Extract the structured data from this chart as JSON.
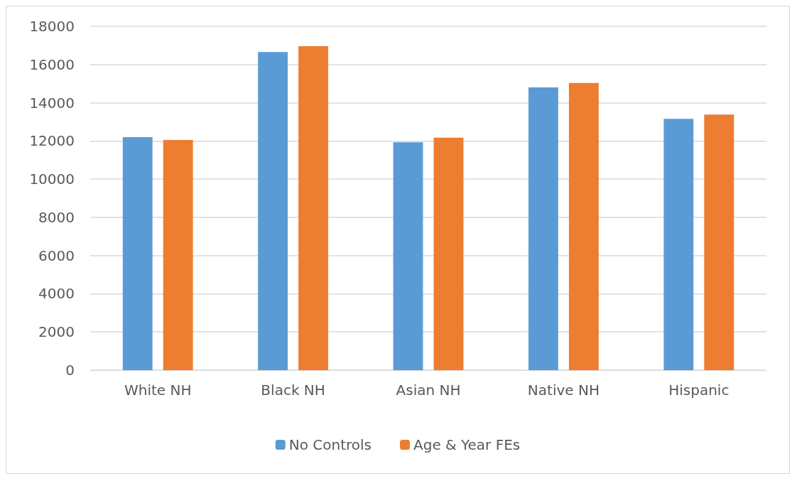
{
  "chart_data": {
    "type": "bar",
    "categories": [
      "White NH",
      "Black NH",
      "Asian NH",
      "Native NH",
      "Hispanic"
    ],
    "series": [
      {
        "name": "No Controls",
        "color": "#5b9bd5",
        "values": [
          12200,
          16650,
          11930,
          14800,
          13160
        ]
      },
      {
        "name": "Age & Year FEs",
        "color": "#ed7d31",
        "values": [
          12050,
          16960,
          12170,
          15030,
          13380
        ]
      }
    ],
    "ylim": [
      0,
      18000
    ],
    "yticks": [
      0,
      2000,
      4000,
      6000,
      8000,
      10000,
      12000,
      14000,
      16000,
      18000
    ],
    "grid": "y",
    "legend": "bottom"
  }
}
